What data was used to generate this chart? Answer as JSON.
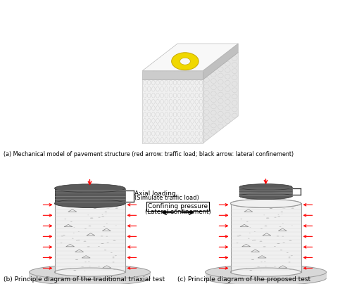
{
  "title_a": "(a) Mechanical model of pavement structure (red arrow: traffic load; black arrow: lateral confinement)",
  "title_b": "(b) Principle diagram of the traditional triaxial test",
  "title_c": "(c) Principle diagram of the proposed test",
  "label_axial": "Axial loading",
  "label_axial2": "(Simulate traffic load)",
  "label_confining": "Confining pressure",
  "label_confining2": "(Lateral confinement)",
  "bg_color": "#ffffff",
  "yellow_color": "#f0d800",
  "dark_cap_color": "#666666",
  "body_color": "#f0f0f0",
  "base_color": "#d8d8d8"
}
